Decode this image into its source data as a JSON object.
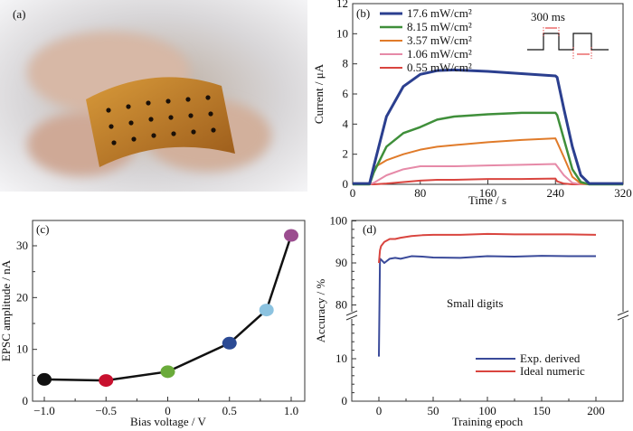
{
  "panel_a": {
    "label": "(a)"
  },
  "chart_data": [
    {
      "id": "b",
      "type": "line",
      "panel_label": "(b)",
      "xlabel": "Time / s",
      "ylabel": "Current / μA",
      "xlim": [
        0,
        320
      ],
      "ylim": [
        0,
        12
      ],
      "xticks": [
        0,
        80,
        160,
        240,
        320
      ],
      "yticks": [
        0,
        2,
        4,
        6,
        8,
        10,
        12
      ],
      "legend_placement": "top-left",
      "inset": {
        "label": "300 ms"
      },
      "x": [
        0,
        20,
        25,
        40,
        60,
        80,
        100,
        120,
        160,
        200,
        240,
        242,
        250,
        260,
        270,
        280,
        320
      ],
      "series": [
        {
          "name": "17.6 mW/cm²",
          "color": "#2b3f8f",
          "width": 3,
          "values": [
            0.05,
            0.05,
            1.2,
            4.5,
            6.5,
            7.3,
            7.55,
            7.6,
            7.5,
            7.35,
            7.2,
            7.1,
            5.0,
            2.5,
            0.6,
            0.05,
            0.05
          ]
        },
        {
          "name": "8.15 mW/cm²",
          "color": "#3f8f3a",
          "width": 2.5,
          "values": [
            0,
            0,
            0.8,
            2.5,
            3.4,
            3.8,
            4.3,
            4.5,
            4.65,
            4.75,
            4.75,
            4.6,
            3.0,
            1.0,
            0.15,
            0,
            0
          ]
        },
        {
          "name": "3.57 mW/cm²",
          "color": "#e07b2a",
          "width": 2,
          "values": [
            0,
            0,
            1.1,
            1.6,
            2.0,
            2.3,
            2.5,
            2.6,
            2.8,
            2.95,
            3.05,
            2.8,
            1.8,
            0.5,
            0.05,
            0,
            0
          ]
        },
        {
          "name": "1.06 mW/cm²",
          "color": "#e68aa8",
          "width": 2,
          "values": [
            0,
            0,
            0.1,
            0.6,
            1.0,
            1.2,
            1.2,
            1.2,
            1.25,
            1.3,
            1.35,
            1.2,
            0.6,
            0.1,
            0,
            0,
            0
          ]
        },
        {
          "name": "0.55 mW/cm²",
          "color": "#d9453f",
          "width": 2,
          "values": [
            0,
            0,
            0,
            0.05,
            0.15,
            0.25,
            0.3,
            0.3,
            0.35,
            0.35,
            0.38,
            0.2,
            0.05,
            0,
            0,
            0,
            0
          ]
        }
      ]
    },
    {
      "id": "c",
      "type": "line",
      "panel_label": "(c)",
      "xlabel": "Bias voltage / V",
      "ylabel": "EPSC amplitude / nA",
      "xlim": [
        -1.1,
        1.1
      ],
      "ylim": [
        0,
        35
      ],
      "xticks": [
        "-1.0",
        "-0.5",
        "0",
        "0.5",
        "1.0"
      ],
      "yticks": [
        0,
        10,
        20,
        30
      ],
      "x": [
        -1.0,
        -0.5,
        0,
        0.5,
        0.8,
        1.0
      ],
      "values": [
        4.2,
        4.0,
        5.7,
        11.2,
        17.6,
        32.0
      ],
      "marker_colors": [
        "#111111",
        "#c8102e",
        "#6aab3a",
        "#2b4a94",
        "#8cc3e0",
        "#9b4d8f"
      ]
    },
    {
      "id": "d",
      "type": "line",
      "panel_label": "(d)",
      "xlabel": "Training epoch",
      "ylabel": "Accuracy / %",
      "xlim": [
        -25,
        225
      ],
      "ylim": [
        0,
        100
      ],
      "axis_break": [
        19,
        77
      ],
      "xticks": [
        0,
        50,
        100,
        150,
        200
      ],
      "yticks": [
        0,
        10,
        80,
        90,
        100
      ],
      "annotation": "Small digits",
      "legend_placement": "bottom-right",
      "x": [
        0,
        1,
        2,
        5,
        10,
        15,
        20,
        30,
        40,
        50,
        75,
        100,
        125,
        150,
        175,
        200
      ],
      "series": [
        {
          "name": "Exp. derived",
          "color": "#3a4a9a",
          "values": [
            10.5,
            91,
            90.8,
            90,
            91,
            91.2,
            91,
            91.6,
            91.5,
            91.3,
            91.2,
            91.6,
            91.5,
            91.7,
            91.6,
            91.6
          ]
        },
        {
          "name": "Ideal numeric",
          "color": "#d9453f",
          "values": [
            90,
            93,
            94,
            95,
            95.7,
            95.7,
            96,
            96.4,
            96.6,
            96.7,
            96.7,
            96.9,
            96.8,
            96.8,
            96.8,
            96.7
          ]
        }
      ]
    }
  ]
}
